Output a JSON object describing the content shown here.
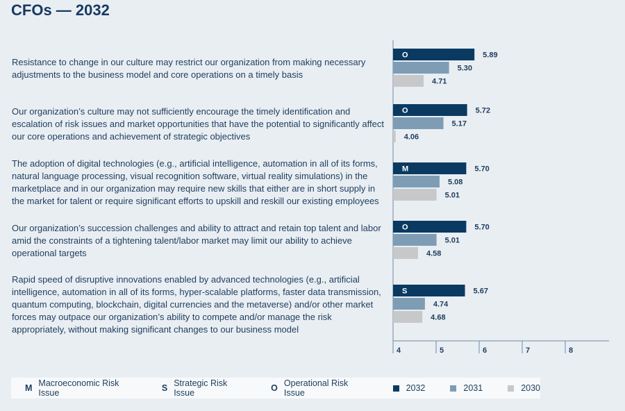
{
  "title": "CFOs — 2032",
  "chart_data": {
    "type": "bar",
    "orientation": "horizontal",
    "title": "CFOs — 2032",
    "xlim": [
      4,
      9
    ],
    "xticks": [
      4,
      5,
      6,
      7,
      8
    ],
    "series_names": [
      "2032",
      "2031",
      "2030"
    ],
    "colors": {
      "2032": "#0a3a61",
      "2031": "#7e9db5",
      "2030": "#c7c8ca"
    },
    "items": [
      {
        "text": "Resistance to change in our culture may restrict our organization from making necessary adjustments to the business model and core operations on a timely basis",
        "code": "O",
        "values": [
          5.89,
          5.3,
          4.71
        ],
        "labels": [
          "5.89",
          "5.30",
          "4.71"
        ]
      },
      {
        "text": "Our organization’s culture may not sufficiently encourage the timely identification and escalation of risk issues and market opportunities that have the potential to significantly affect our core operations and achievement of strategic objectives",
        "code": "O",
        "values": [
          5.72,
          5.17,
          4.06
        ],
        "labels": [
          "5.72",
          "5.17",
          "4.06"
        ]
      },
      {
        "text": "The adoption of digital technologies (e.g., artificial intelligence, automation in all of its forms, natural language processing, visual recognition software, virtual reality simulations) in the marketplace and in our organization may require new skills that either are in short supply in the market for talent or require significant efforts to upskill and reskill our existing employees",
        "code": "M",
        "values": [
          5.7,
          5.08,
          5.01
        ],
        "labels": [
          "5.70",
          "5.08",
          "5.01"
        ]
      },
      {
        "text": "Our organization’s succession challenges and ability to attract and retain top talent and labor amid the constraints of a tightening talent/labor market may limit our ability to achieve operational targets",
        "code": "O",
        "values": [
          5.7,
          5.01,
          4.58
        ],
        "labels": [
          "5.70",
          "5.01",
          "4.58"
        ]
      },
      {
        "text": "Rapid speed of disruptive innovations enabled by advanced technologies (e.g., artificial intelligence, automation in all of its forms, hyper-scalable platforms, faster data transmission, quantum computing, blockchain, digital currencies and the metaverse) and/or other market forces may outpace our organization’s ability to compete and/or manage the risk appropriately, without making significant changes to our business model",
        "code": "S",
        "values": [
          5.67,
          4.74,
          4.68
        ],
        "labels": [
          "5.67",
          "4.74",
          "4.68"
        ]
      }
    ]
  },
  "legend": {
    "codes": [
      {
        "code": "M",
        "label": "Macroeconomic Risk Issue"
      },
      {
        "code": "S",
        "label": "Strategic Risk Issue"
      },
      {
        "code": "O",
        "label": "Operational Risk Issue"
      }
    ],
    "years": [
      {
        "label": "2032",
        "color": "#0a3a61"
      },
      {
        "label": "2031",
        "color": "#7e9db5"
      },
      {
        "label": "2030",
        "color": "#c7c8ca"
      }
    ]
  }
}
